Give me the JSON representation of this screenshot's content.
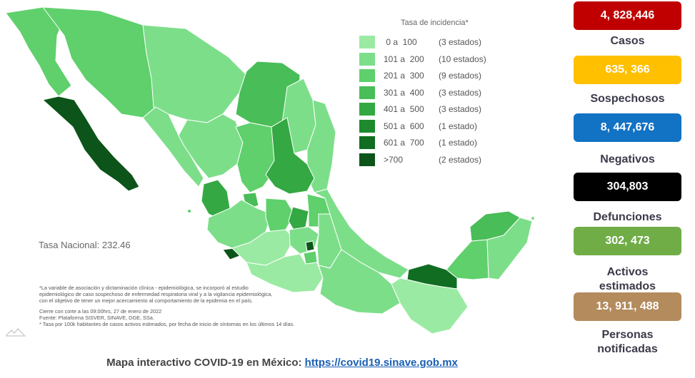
{
  "legend": {
    "title": "Tasa de incidencia*",
    "items": [
      {
        "range": " 0 a  100",
        "count": "(3 estados)",
        "color": "#9beaa3"
      },
      {
        "range": "101 a  200",
        "count": "(10 estados)",
        "color": "#7dde8a"
      },
      {
        "range": "201 a  300",
        "count": "(9 estados)",
        "color": "#5fd06c"
      },
      {
        "range": "301 a  400",
        "count": "(3 estados)",
        "color": "#49bd57"
      },
      {
        "range": "401 a  500",
        "count": "(3 estados)",
        "color": "#34a843"
      },
      {
        "range": "501 a  600",
        "count": "(1 estado)",
        "color": "#1d8a2e"
      },
      {
        "range": "601 a  700",
        "count": "(1 estado)",
        "color": "#106d22"
      },
      {
        "range": ">700",
        "count": "(2 estados)",
        "color": "#0c5419"
      }
    ]
  },
  "national_rate": "Tasa Nacional: 232.46",
  "notes": {
    "line1": "*La variable de asociación y dictaminación clínica - epidemiológica, se incorporó al estudio",
    "line2": "epidemiológico de caso sospechoso de enfermedad respiratoria viral y a la vigilancia epidemiológica,",
    "line3": "con el objetivo de tener un mejor acercamiento al comportamiento de la epidemia en el país.",
    "cutoff": "Cierre con corte a las 09:00hrs, 27 de enero de 2022",
    "source": "Fuente: Plataforma SISVER, SINAVE, DGE, SSa.",
    "rate_note": "* Tasa por 100k habitantes de casos activos estimados, por fecha de inicio de síntomas en los últimos 14 días."
  },
  "footer": {
    "text": "Mapa interactivo COVID-19 en México: ",
    "link": "https://covid19.sinave.gob.mx"
  },
  "stats": [
    {
      "value": "4, 828,446",
      "label": "Casos",
      "color": "#c00000"
    },
    {
      "value": "635, 366",
      "label": "Sospechosos",
      "color": "#ffc000"
    },
    {
      "value": "8, 447,676",
      "label": "Negativos",
      "color": "#1272c4"
    },
    {
      "value": "304,803",
      "label": "Defunciones",
      "color": "#000000"
    },
    {
      "value": "302, 473",
      "label": "Activos\nestimados",
      "color": "#70ad47"
    },
    {
      "value": "13, 911, 488",
      "label": "Personas\nnotificadas",
      "color": "#b38b5d"
    }
  ]
}
